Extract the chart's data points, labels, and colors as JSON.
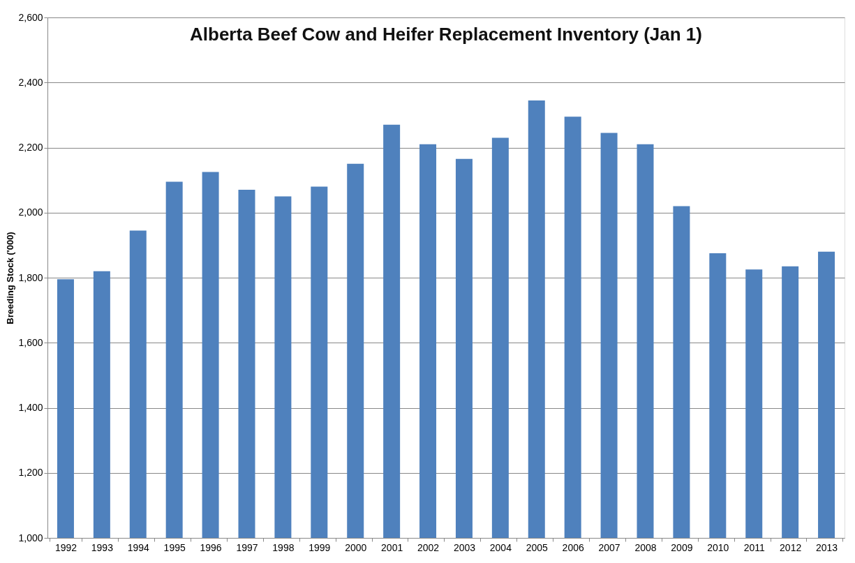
{
  "chart_data": {
    "type": "bar",
    "title": "Alberta Beef Cow and Heifer Replacement Inventory (Jan 1)",
    "ylabel": "Breeding Stock ('000)",
    "categories": [
      "1992",
      "1993",
      "1994",
      "1995",
      "1996",
      "1997",
      "1998",
      "1999",
      "2000",
      "2001",
      "2002",
      "2003",
      "2004",
      "2005",
      "2006",
      "2007",
      "2008",
      "2009",
      "2010",
      "2011",
      "2012",
      "2013"
    ],
    "values": [
      1795,
      1820,
      1945,
      2095,
      2125,
      2070,
      2050,
      2080,
      2150,
      2270,
      2210,
      2165,
      2230,
      2345,
      2295,
      2245,
      2210,
      2020,
      1875,
      1825,
      1835,
      1880
    ],
    "color": "#4f81bd",
    "ylim": [
      1000,
      2600
    ],
    "yticks": [
      {
        "value": 1000,
        "label": "1,000"
      },
      {
        "value": 1200,
        "label": "1,200"
      },
      {
        "value": 1400,
        "label": "1,400"
      },
      {
        "value": 1600,
        "label": "1,600"
      },
      {
        "value": 1800,
        "label": "1,800"
      },
      {
        "value": 2000,
        "label": "2,000"
      },
      {
        "value": 2200,
        "label": "2,200"
      },
      {
        "value": 2400,
        "label": "2,400"
      },
      {
        "value": 2600,
        "label": "2,600"
      }
    ],
    "grid": "y"
  }
}
